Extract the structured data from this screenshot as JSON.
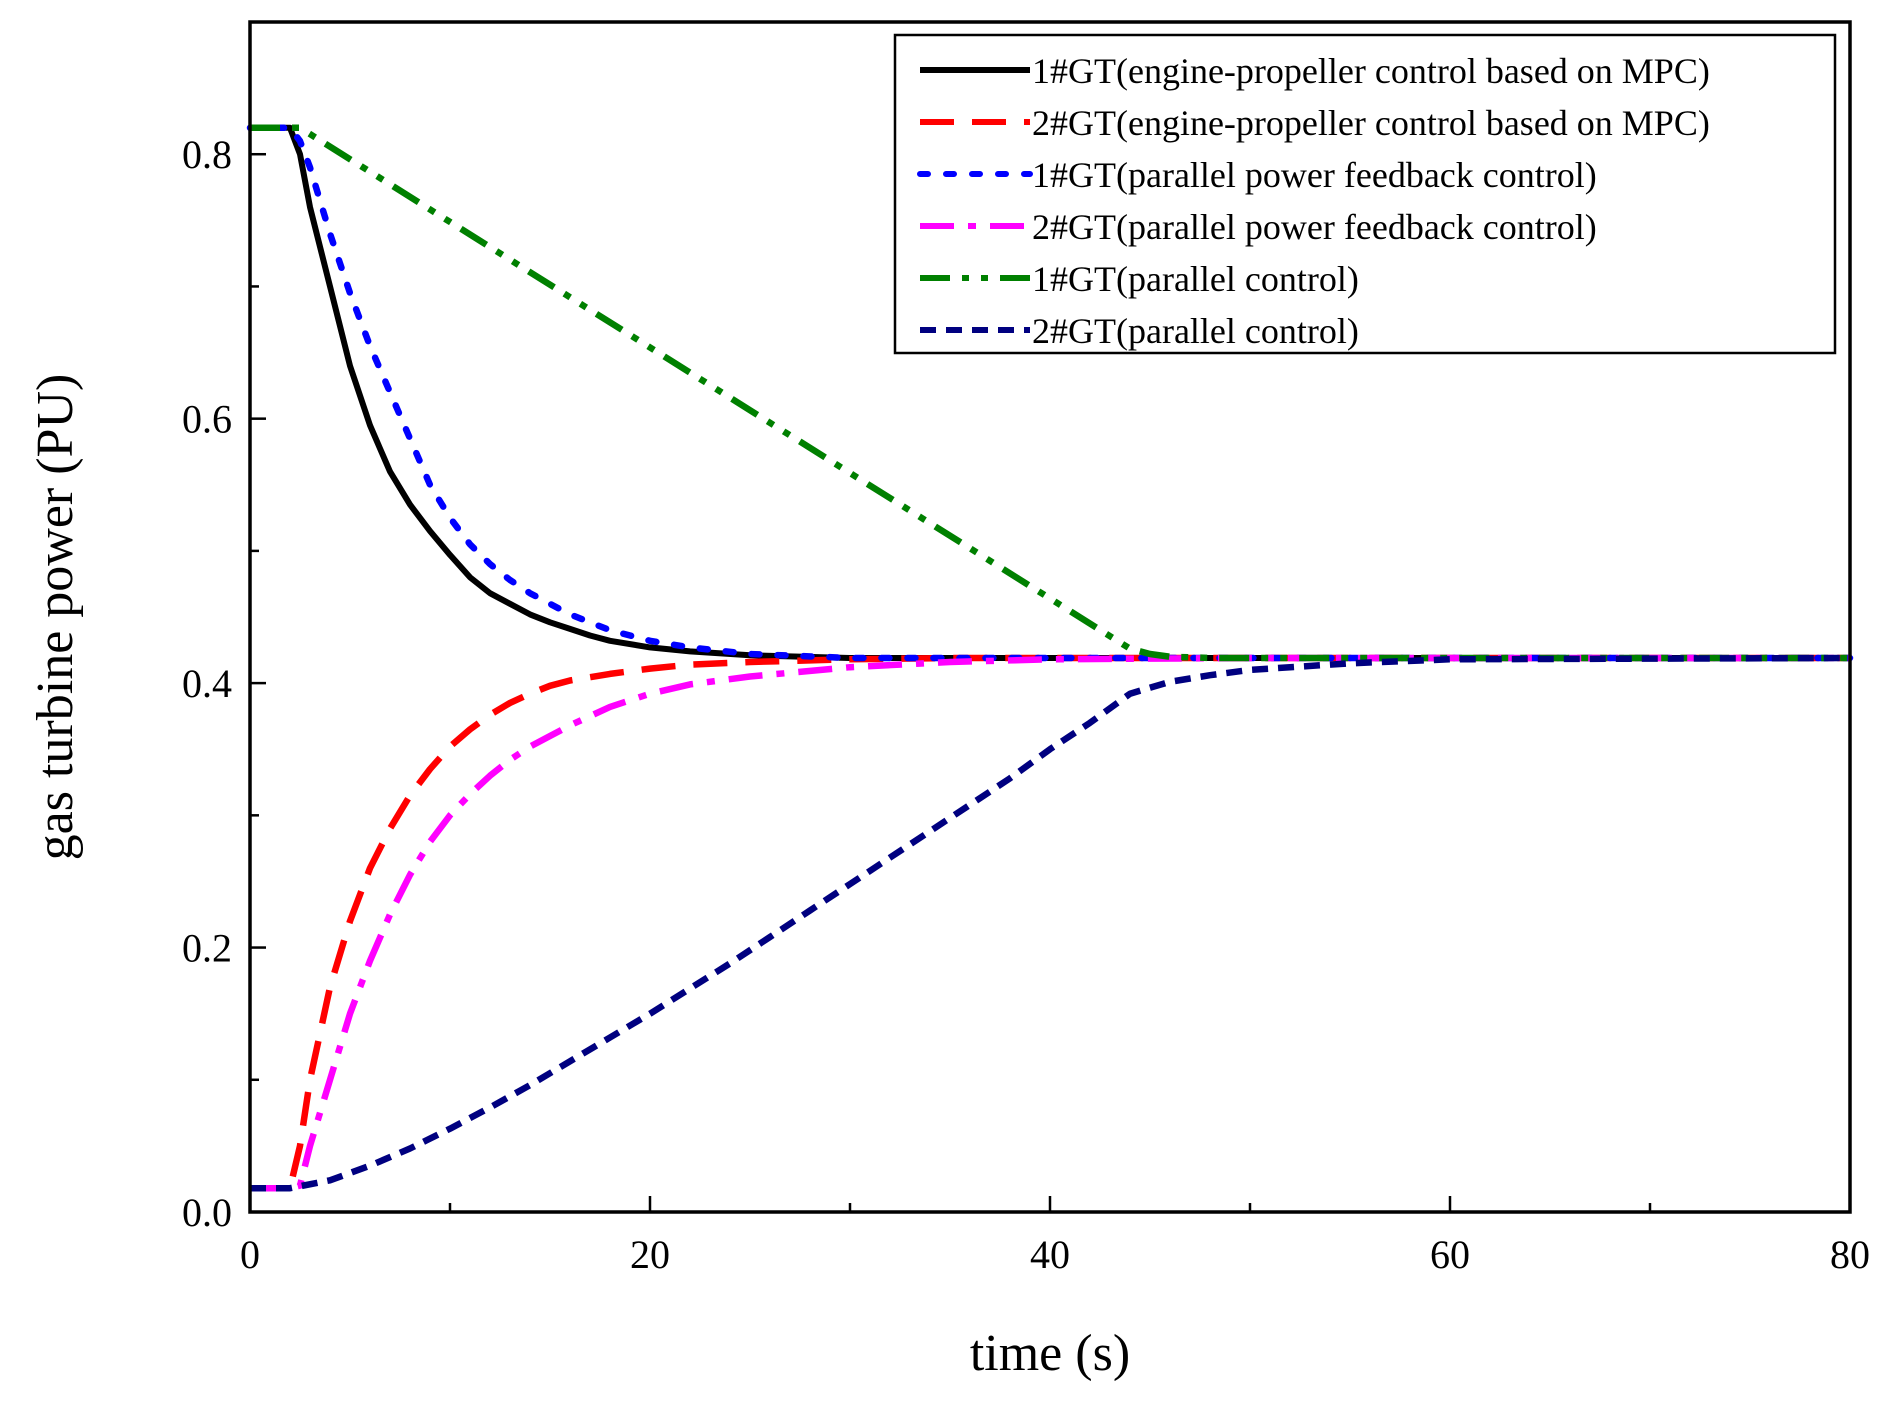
{
  "chart_data": {
    "type": "line",
    "title": "",
    "xlabel": "time (s)",
    "ylabel": "gas turbine power (PU)",
    "xlim": [
      0,
      80
    ],
    "ylim": [
      0,
      0.9
    ],
    "xticks": [
      0,
      20,
      40,
      60,
      80
    ],
    "xtick_labels": [
      "0",
      "20",
      "40",
      "60",
      "80"
    ],
    "yticks": [
      0.0,
      0.2,
      0.4,
      0.6,
      0.8
    ],
    "ytick_labels": [
      "0.0",
      "0.2",
      "0.4",
      "0.6",
      "0.8"
    ],
    "x_minor_step": 10,
    "y_minor_step": 0.1,
    "grid": false,
    "legend_position": "top-right",
    "series": [
      {
        "name": "1#GT(engine-propeller control based on MPC)",
        "color": "#000000",
        "style": "solid",
        "x": [
          0,
          2,
          2.5,
          3,
          4,
          5,
          6,
          7,
          8,
          9,
          10,
          11,
          12,
          13,
          14,
          15,
          16,
          17,
          18,
          20,
          22,
          25,
          30,
          35,
          40,
          50,
          60,
          80
        ],
        "y": [
          0.82,
          0.82,
          0.8,
          0.76,
          0.7,
          0.64,
          0.595,
          0.56,
          0.535,
          0.515,
          0.497,
          0.48,
          0.468,
          0.46,
          0.452,
          0.446,
          0.441,
          0.436,
          0.432,
          0.427,
          0.424,
          0.421,
          0.419,
          0.419,
          0.419,
          0.419,
          0.419,
          0.419
        ]
      },
      {
        "name": "2#GT(engine-propeller control based on MPC)",
        "color": "#ff0000",
        "style": "dash",
        "x": [
          0,
          2,
          2.5,
          3,
          4,
          5,
          6,
          7,
          8,
          9,
          10,
          11,
          12,
          13,
          14,
          15,
          16,
          18,
          20,
          22,
          25,
          30,
          35,
          40,
          50,
          60,
          80
        ],
        "y": [
          0.018,
          0.018,
          0.05,
          0.1,
          0.17,
          0.22,
          0.26,
          0.29,
          0.315,
          0.335,
          0.352,
          0.365,
          0.376,
          0.385,
          0.392,
          0.398,
          0.402,
          0.407,
          0.411,
          0.414,
          0.416,
          0.418,
          0.419,
          0.419,
          0.419,
          0.419,
          0.419
        ]
      },
      {
        "name": "1#GT(parallel power feedback control)",
        "color": "#0000ff",
        "style": "dot",
        "x": [
          0,
          2,
          2.5,
          3,
          4,
          5,
          6,
          7,
          8,
          9,
          10,
          11,
          12,
          13,
          14,
          15,
          16,
          18,
          20,
          22,
          25,
          30,
          35,
          40,
          50,
          60,
          80
        ],
        "y": [
          0.82,
          0.82,
          0.81,
          0.79,
          0.74,
          0.695,
          0.655,
          0.62,
          0.585,
          0.55,
          0.525,
          0.505,
          0.49,
          0.478,
          0.468,
          0.46,
          0.452,
          0.44,
          0.432,
          0.427,
          0.422,
          0.419,
          0.419,
          0.419,
          0.419,
          0.419,
          0.419
        ]
      },
      {
        "name": "2#GT(parallel power feedback control)",
        "color": "#ff00ff",
        "style": "dashdot",
        "x": [
          0,
          2,
          2.5,
          3,
          4,
          5,
          6,
          7,
          8,
          9,
          10,
          11,
          12,
          13,
          14,
          15,
          16,
          18,
          20,
          22,
          25,
          30,
          35,
          40,
          50,
          60,
          80
        ],
        "y": [
          0.018,
          0.018,
          0.02,
          0.05,
          0.1,
          0.15,
          0.19,
          0.225,
          0.255,
          0.28,
          0.3,
          0.316,
          0.33,
          0.342,
          0.352,
          0.36,
          0.368,
          0.382,
          0.392,
          0.399,
          0.405,
          0.412,
          0.416,
          0.418,
          0.419,
          0.419,
          0.419
        ]
      },
      {
        "name": "1#GT(parallel control)",
        "color": "#008000",
        "style": "dashdotdot",
        "x": [
          0,
          2,
          2.5,
          44,
          45,
          46,
          48,
          50,
          60,
          80
        ],
        "y": [
          0.82,
          0.82,
          0.82,
          0.426,
          0.422,
          0.42,
          0.419,
          0.419,
          0.419,
          0.419
        ]
      },
      {
        "name": "2#GT(parallel control)",
        "color": "#000080",
        "style": "shortdash",
        "x": [
          0,
          2,
          4,
          6,
          8,
          10,
          12,
          14,
          16,
          18,
          20,
          22,
          24,
          26,
          28,
          30,
          32,
          34,
          36,
          38,
          40,
          42,
          44,
          46,
          48,
          50,
          55,
          60,
          80
        ],
        "y": [
          0.018,
          0.018,
          0.024,
          0.035,
          0.048,
          0.063,
          0.079,
          0.096,
          0.114,
          0.132,
          0.15,
          0.169,
          0.188,
          0.208,
          0.228,
          0.248,
          0.268,
          0.288,
          0.308,
          0.328,
          0.35,
          0.37,
          0.392,
          0.401,
          0.406,
          0.41,
          0.415,
          0.418,
          0.419
        ]
      }
    ]
  }
}
